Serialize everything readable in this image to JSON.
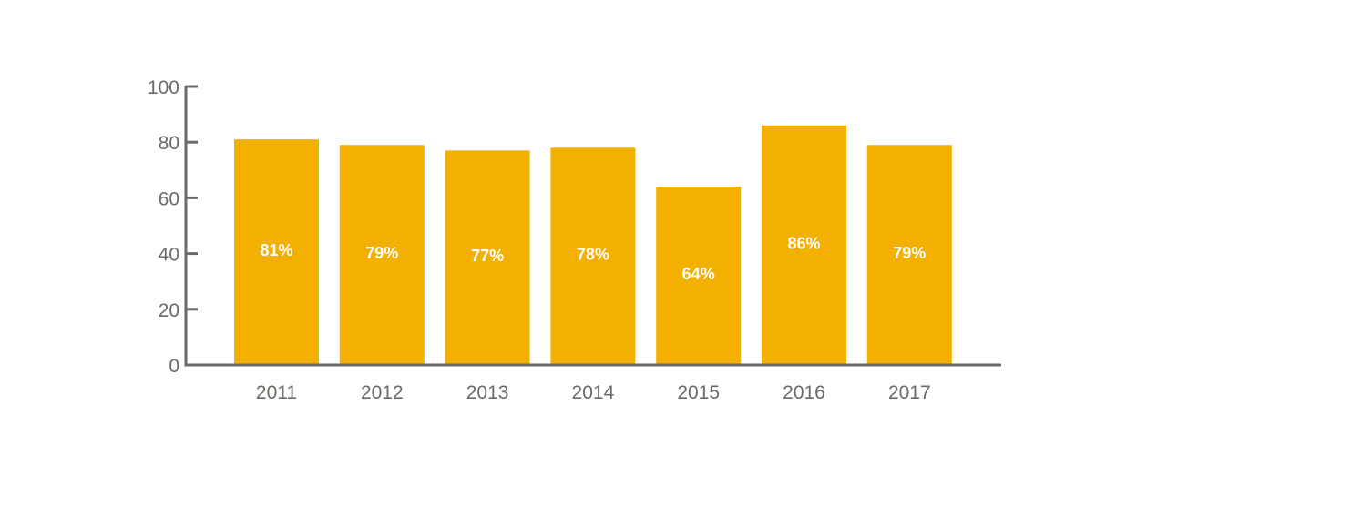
{
  "chart_data": {
    "type": "bar",
    "categories": [
      "2011",
      "2012",
      "2013",
      "2014",
      "2015",
      "2016",
      "2017"
    ],
    "values": [
      81,
      79,
      77,
      78,
      64,
      86,
      79
    ],
    "data_labels": [
      "81%",
      "79%",
      "77%",
      "78%",
      "64%",
      "86%",
      "79%"
    ],
    "ylim": [
      0,
      100
    ],
    "yticks": [
      0,
      20,
      40,
      60,
      80,
      100
    ],
    "title": "",
    "xlabel": "",
    "ylabel": "",
    "grid": false,
    "bar_color": "#f4b000",
    "axis_color": "#6d6a66"
  }
}
